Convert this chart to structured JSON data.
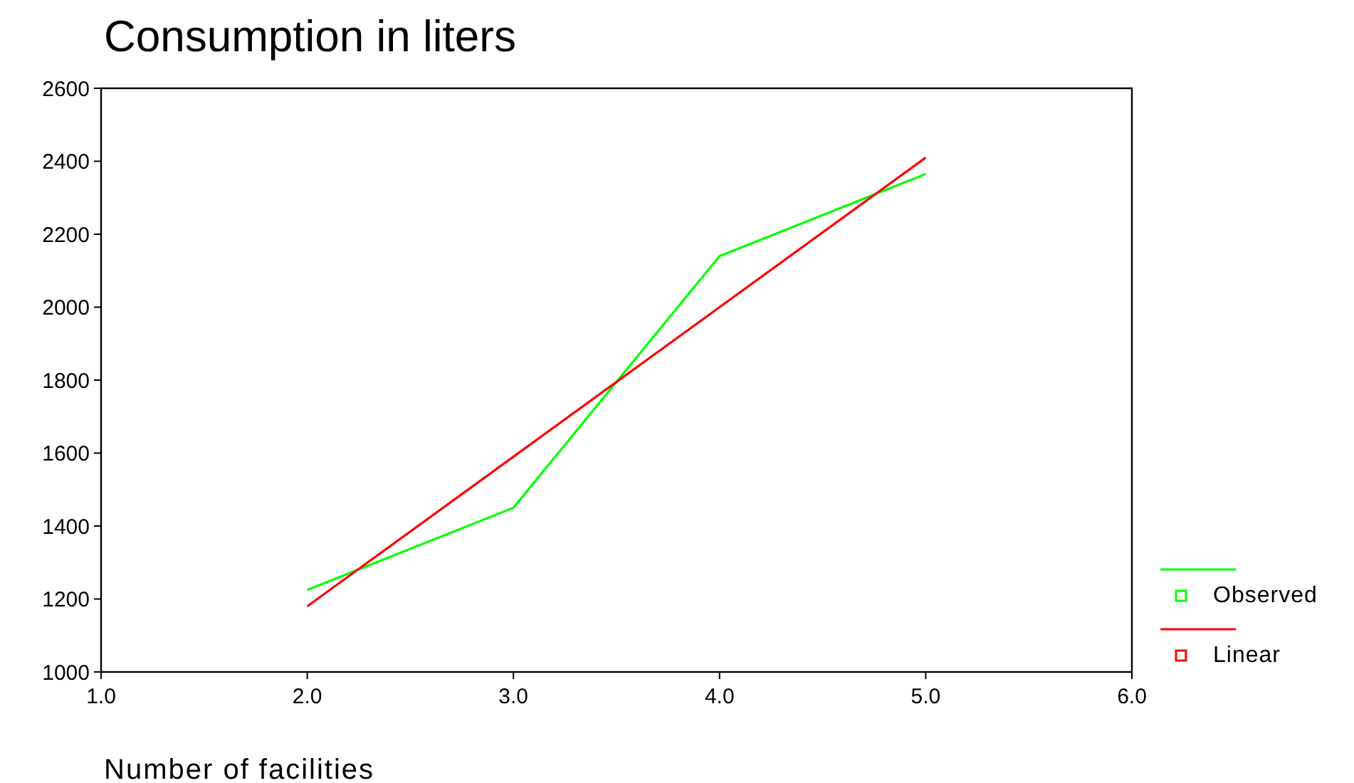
{
  "chart_data": {
    "type": "line",
    "title": "Consumption in liters",
    "xlabel": "Number of facilities",
    "x": [
      2,
      3,
      4,
      5
    ],
    "series": [
      {
        "name": "Observed",
        "color": "#00ff00",
        "values": [
          1225,
          1450,
          2140,
          2365
        ]
      },
      {
        "name": "Linear",
        "color": "#ff0000",
        "values": [
          1180,
          1590,
          2000,
          2410
        ]
      }
    ],
    "xlim": [
      1,
      6
    ],
    "xticks": [
      {
        "value": 1,
        "label": "1.0"
      },
      {
        "value": 2,
        "label": "2.0"
      },
      {
        "value": 3,
        "label": "3.0"
      },
      {
        "value": 4,
        "label": "4.0"
      },
      {
        "value": 5,
        "label": "5.0"
      },
      {
        "value": 6,
        "label": "6.0"
      }
    ],
    "ylim": [
      1000,
      2600
    ],
    "yticks": [
      1000,
      1200,
      1400,
      1600,
      1800,
      2000,
      2200,
      2400,
      2600
    ],
    "grid": false,
    "legend": "right",
    "marker": "none",
    "line_style": "solid"
  }
}
